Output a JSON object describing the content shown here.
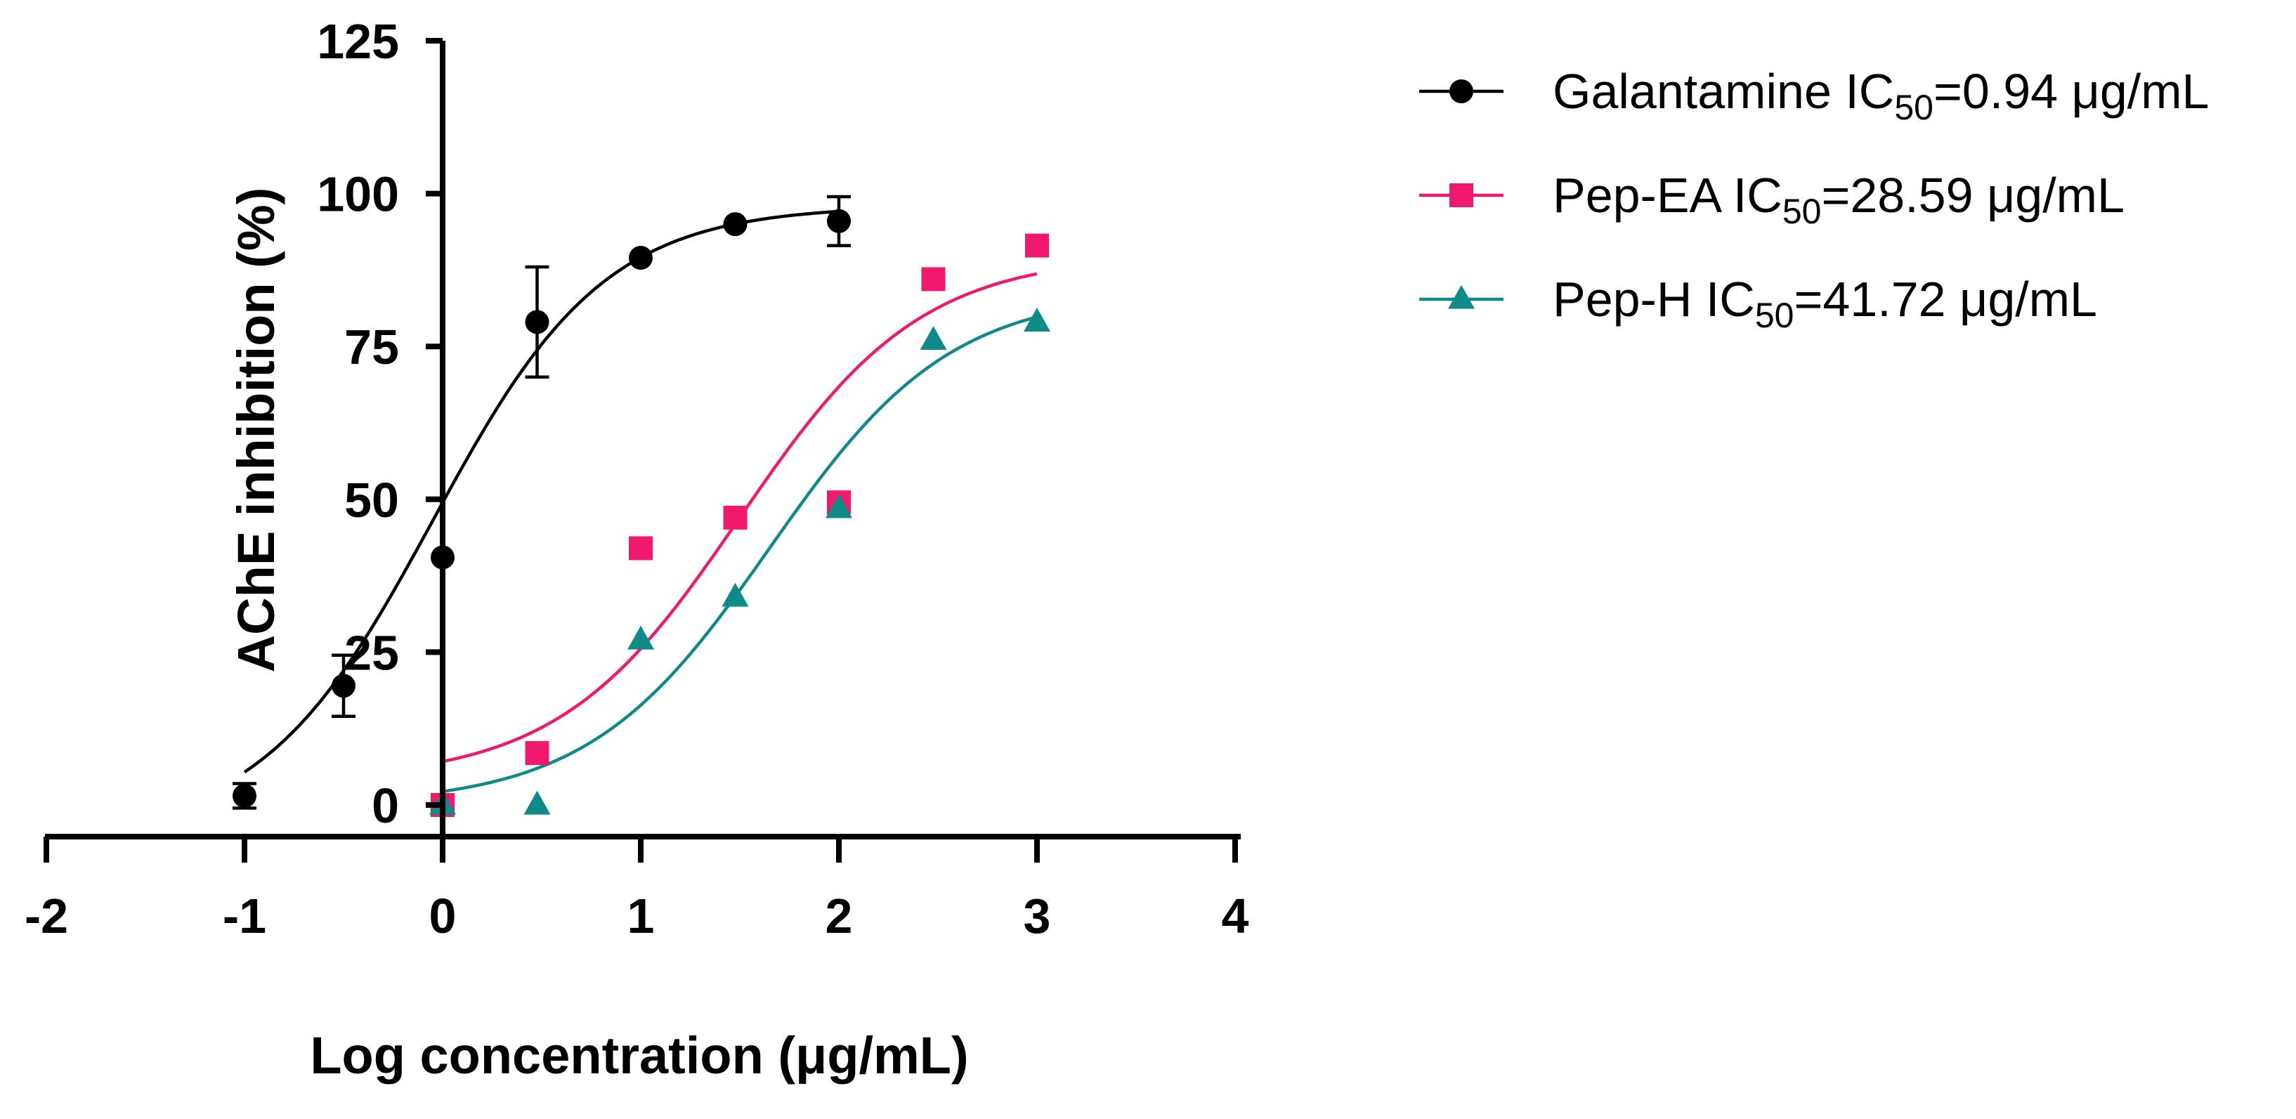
{
  "chart_data": {
    "type": "scatter",
    "title": "",
    "xlabel": "Log concentration (μg/mL)",
    "ylabel": "AChE inhibition (%)",
    "xlim": [
      -2,
      4
    ],
    "ylim": [
      0,
      125
    ],
    "x_ticks": [
      "-2",
      "-1",
      "0",
      "1",
      "2",
      "3",
      "4"
    ],
    "y_ticks": [
      "0",
      "25",
      "50",
      "75",
      "100",
      "125"
    ],
    "grid": false,
    "legend_position": "top-right, outside plot",
    "series": [
      {
        "name": "Galantamine",
        "legend_prefix": "Galantamine IC",
        "legend_sub": "50",
        "legend_suffix": "=0.94 μg/mL",
        "ic50": 0.94,
        "color": "#000000",
        "marker": "circle",
        "x": [
          -1,
          -0.5,
          0,
          0.477,
          1,
          1.477,
          2
        ],
        "y": [
          1.5,
          19.5,
          40.5,
          79,
          89.5,
          95,
          95.5
        ],
        "err": [
          2,
          5,
          0,
          9,
          0,
          0,
          4
        ],
        "fit": {
          "bottom": -5,
          "top": 98,
          "logec50": -0.05,
          "hill": 1
        }
      },
      {
        "name": "Pep-EA",
        "legend_prefix": "Pep-EA IC",
        "legend_sub": "50",
        "legend_suffix": "=28.59 μg/mL",
        "ic50": 28.59,
        "color": "#f0196e",
        "marker": "square",
        "x": [
          0,
          0.477,
          1,
          1.477,
          2,
          2.477,
          3
        ],
        "y": [
          0,
          8.5,
          42,
          47,
          49.5,
          86,
          91.5
        ],
        "err": [],
        "fit": {
          "bottom": 4,
          "top": 90,
          "logec50": 1.5,
          "hill": 0.95
        }
      },
      {
        "name": "Pep-H",
        "legend_prefix": "Pep-H IC",
        "legend_sub": "50",
        "legend_suffix": "=41.72 μg/mL",
        "ic50": 41.72,
        "color": "#0e8a87",
        "marker": "triangle",
        "x": [
          0,
          0.477,
          1,
          1.477,
          2,
          2.477,
          3
        ],
        "y": [
          0,
          0,
          27,
          34,
          48.5,
          76,
          79
        ],
        "err": [],
        "fit": {
          "bottom": 0,
          "top": 84,
          "logec50": 1.65,
          "hill": 0.95
        }
      }
    ]
  }
}
